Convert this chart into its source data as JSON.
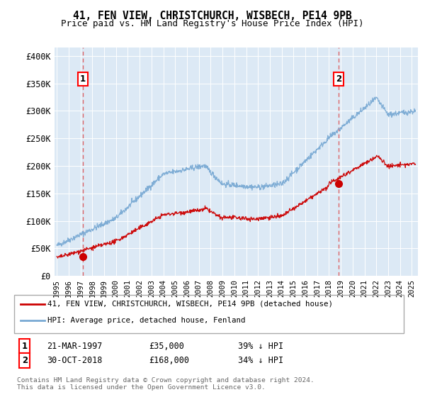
{
  "title": "41, FEN VIEW, CHRISTCHURCH, WISBECH, PE14 9PB",
  "subtitle": "Price paid vs. HM Land Registry's House Price Index (HPI)",
  "background_color": "#dce9f5",
  "plot_bg_color": "#dce9f5",
  "ylabel_ticks": [
    "£0",
    "£50K",
    "£100K",
    "£150K",
    "£200K",
    "£250K",
    "£300K",
    "£350K",
    "£400K"
  ],
  "ytick_values": [
    0,
    50000,
    100000,
    150000,
    200000,
    250000,
    300000,
    350000,
    400000
  ],
  "ylim": [
    0,
    415000
  ],
  "xlim_start": 1994.8,
  "xlim_end": 2025.5,
  "sale1_x": 1997.22,
  "sale1_y": 35000,
  "sale1_label": "1",
  "sale1_date": "21-MAR-1997",
  "sale1_price": "£35,000",
  "sale1_hpi": "39% ↓ HPI",
  "sale2_x": 2018.83,
  "sale2_y": 168000,
  "sale2_label": "2",
  "sale2_date": "30-OCT-2018",
  "sale2_price": "£168,000",
  "sale2_hpi": "34% ↓ HPI",
  "legend_label_red": "41, FEN VIEW, CHRISTCHURCH, WISBECH, PE14 9PB (detached house)",
  "legend_label_blue": "HPI: Average price, detached house, Fenland",
  "footer": "Contains HM Land Registry data © Crown copyright and database right 2024.\nThis data is licensed under the Open Government Licence v3.0.",
  "hpi_color": "#7aaad4",
  "sale_color": "#cc0000",
  "marker_color": "#cc0000"
}
